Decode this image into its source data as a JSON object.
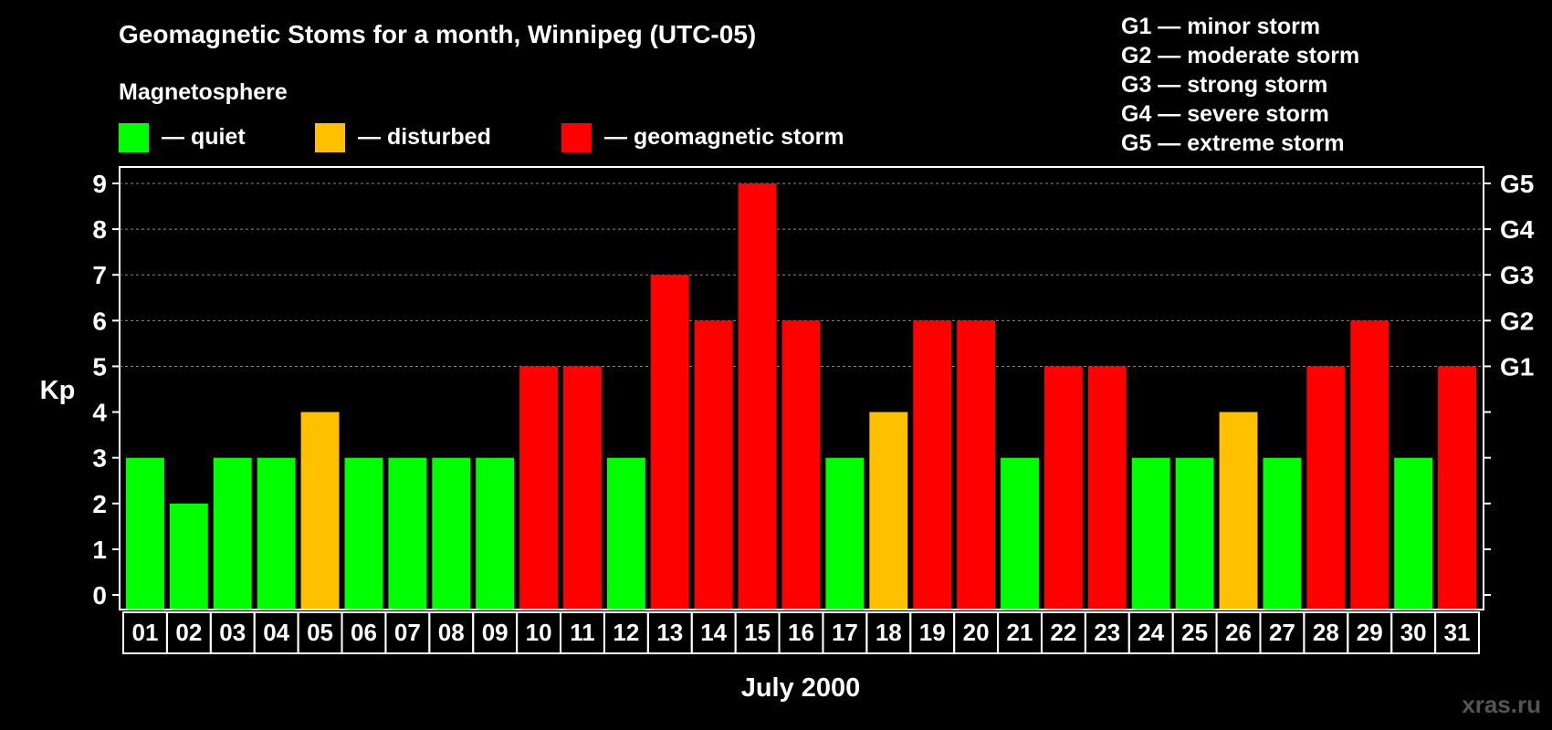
{
  "chart_data": {
    "type": "bar",
    "title": "Geomagnetic Stoms for a month, Winnipeg (UTC-05)",
    "xlabel": "July 2000",
    "ylabel": "Kp",
    "ylim": [
      0,
      9
    ],
    "yticks": [
      0,
      1,
      2,
      3,
      4,
      5,
      6,
      7,
      8,
      9
    ],
    "grid": "dashed at Kp 5-9",
    "categories": [
      "01",
      "02",
      "03",
      "04",
      "05",
      "06",
      "07",
      "08",
      "09",
      "10",
      "11",
      "12",
      "13",
      "14",
      "15",
      "16",
      "17",
      "18",
      "19",
      "20",
      "21",
      "22",
      "23",
      "24",
      "25",
      "26",
      "27",
      "28",
      "29",
      "30",
      "31"
    ],
    "values": [
      3,
      2,
      3,
      3,
      4,
      3,
      3,
      3,
      3,
      5,
      5,
      3,
      7,
      6,
      9,
      6,
      3,
      4,
      6,
      6,
      3,
      5,
      5,
      3,
      3,
      4,
      3,
      5,
      6,
      3,
      5
    ],
    "status": [
      "quiet",
      "quiet",
      "quiet",
      "quiet",
      "disturbed",
      "quiet",
      "quiet",
      "quiet",
      "quiet",
      "storm",
      "storm",
      "quiet",
      "storm",
      "storm",
      "storm",
      "storm",
      "quiet",
      "disturbed",
      "storm",
      "storm",
      "quiet",
      "storm",
      "storm",
      "quiet",
      "quiet",
      "disturbed",
      "quiet",
      "storm",
      "storm",
      "quiet",
      "storm"
    ],
    "right_axis": [
      {
        "kp": 5,
        "label": "G1"
      },
      {
        "kp": 6,
        "label": "G2"
      },
      {
        "kp": 7,
        "label": "G3"
      },
      {
        "kp": 8,
        "label": "G4"
      },
      {
        "kp": 9,
        "label": "G5"
      }
    ],
    "legend": {
      "title": "Magnetosphere",
      "items": [
        {
          "key": "quiet",
          "label": "— quiet",
          "color": "#00ff00"
        },
        {
          "key": "disturbed",
          "label": "— disturbed",
          "color": "#ffc000"
        },
        {
          "key": "storm",
          "label": "— geomagnetic storm",
          "color": "#ff0000"
        }
      ]
    },
    "g_scale": [
      "G1 — minor storm",
      "G2 — moderate storm",
      "G3 — strong storm",
      "G4 — severe storm",
      "G5 — extreme storm"
    ]
  },
  "watermark": "xras.ru"
}
